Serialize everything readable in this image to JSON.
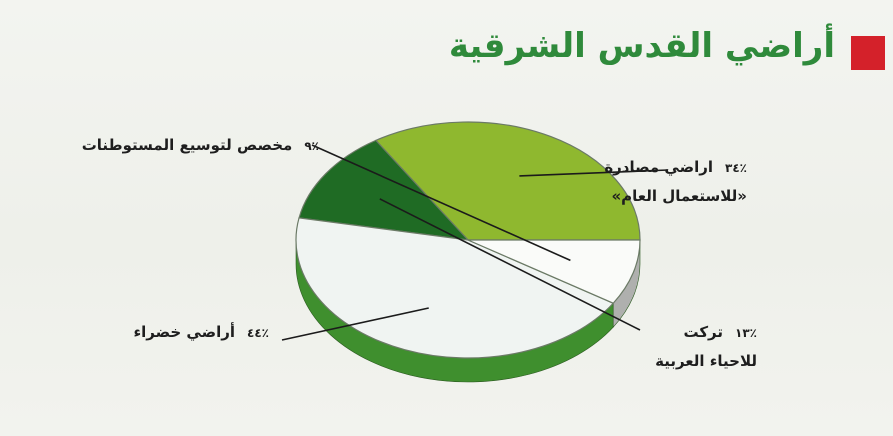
{
  "title": "أراضي القدس الشرقية",
  "colors": {
    "title": "#2f8a3b",
    "marker": "#d4212a"
  },
  "chart_data": {
    "type": "pie",
    "title": "أراضي القدس الشرقية",
    "slices": [
      {
        "pct_label": "٪٣٤",
        "text": "اراضي مصادرة",
        "text2": "«للاستعمال العام»",
        "value": 34,
        "color": "#8fb82f"
      },
      {
        "pct_label": "٪١٣",
        "text": "تركت",
        "text2": "للاحياء العربية",
        "value": 13,
        "color": "#1f6b24"
      },
      {
        "pct_label": "٪٤٤",
        "text": "أراضي خضراء",
        "text2": "",
        "value": 44,
        "color": "#f0f4f2"
      },
      {
        "pct_label": "٪٩",
        "text": "مخصص لتوسيع المستوطنات",
        "text2": "",
        "value": 9,
        "color": "#fafbf9"
      }
    ]
  }
}
